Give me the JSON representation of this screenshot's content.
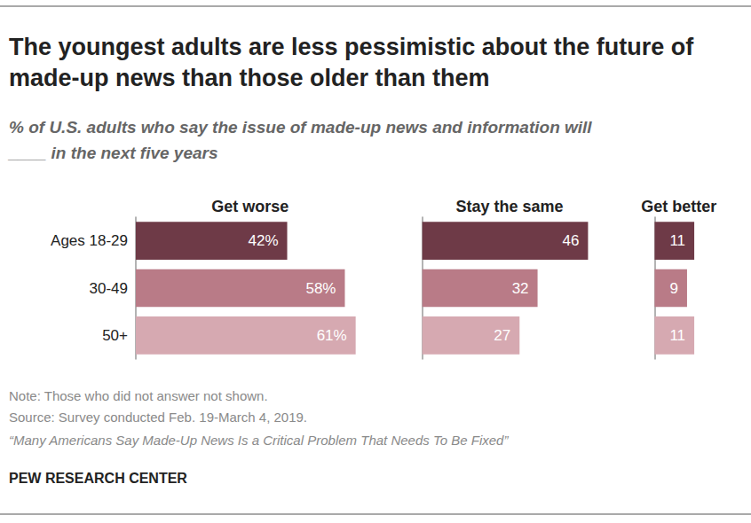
{
  "chart_data": {
    "type": "bar",
    "orientation": "horizontal",
    "title": "The youngest adults are less pessimistic about the future of made-up news than those older than them",
    "subtitle": "% of U.S. adults who say the issue of made-up news and information will ____ in the next five years",
    "categories": [
      "Ages 18-29",
      "30-49",
      "50+"
    ],
    "colors": [
      "#6e3a47",
      "#b97b87",
      "#d6a9b1"
    ],
    "data_labels": true,
    "tick_labels": "y",
    "grid": false,
    "series": [
      {
        "name": "Get worse",
        "values": [
          42,
          58,
          61
        ],
        "value_labels": [
          "42%",
          "58%",
          "61%"
        ],
        "xlim": [
          0,
          61
        ]
      },
      {
        "name": "Stay the same",
        "values": [
          46,
          32,
          27
        ],
        "xlim": [
          0,
          46
        ]
      },
      {
        "name": "Get better",
        "values": [
          11,
          9,
          11
        ],
        "xlim": [
          0,
          11
        ]
      }
    ],
    "note": "Note: Those who did not answer not shown.",
    "source": "Source: Survey conducted Feb. 19-March 4, 2019.",
    "publication": "“Many Americans Say Made-Up News Is a Critical Problem That Needs To Be Fixed”",
    "credit": "PEW RESEARCH CENTER"
  }
}
